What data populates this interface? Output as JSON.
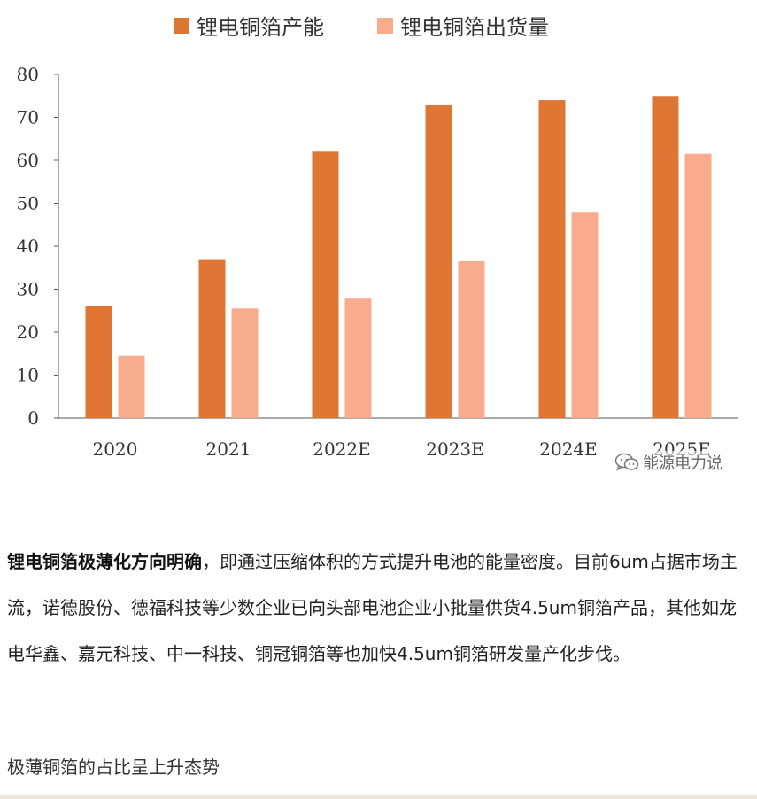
{
  "chart_data": {
    "type": "bar",
    "categories": [
      "2020",
      "2021",
      "2022E",
      "2023E",
      "2024E",
      "2025E"
    ],
    "series": [
      {
        "name": "锂电铜箔产能",
        "values": [
          26,
          37,
          62,
          73,
          74,
          75
        ],
        "color": "#e07633"
      },
      {
        "name": "锂电铜箔出货量",
        "values": [
          14.5,
          25.5,
          28,
          36.5,
          48,
          61.5
        ],
        "color": "#f9ab8d"
      }
    ],
    "yticks": [
      "0",
      "10",
      "20",
      "30",
      "40",
      "50",
      "60",
      "70",
      "80"
    ],
    "ylim": [
      0,
      80
    ],
    "grid": false,
    "legend_position": "top"
  },
  "watermark": {
    "text": "能源电力说",
    "icon": "wechat-icon"
  },
  "article": {
    "para_bold": "锂电铜箔极薄化方向明确",
    "para_text": "，即通过压缩体积的方式提升电池的能量密度。目前6um占据市场主流，诺德股份、德福科技等少数企业已向头部电池企业小批量供货4.5um铜箔产品，其他如龙电华鑫、嘉元科技、中一科技、铜冠铜箔等也加快4.5um铜箔研发量产化步伐。",
    "caption": "极薄铜箔的占比呈上升态势"
  }
}
